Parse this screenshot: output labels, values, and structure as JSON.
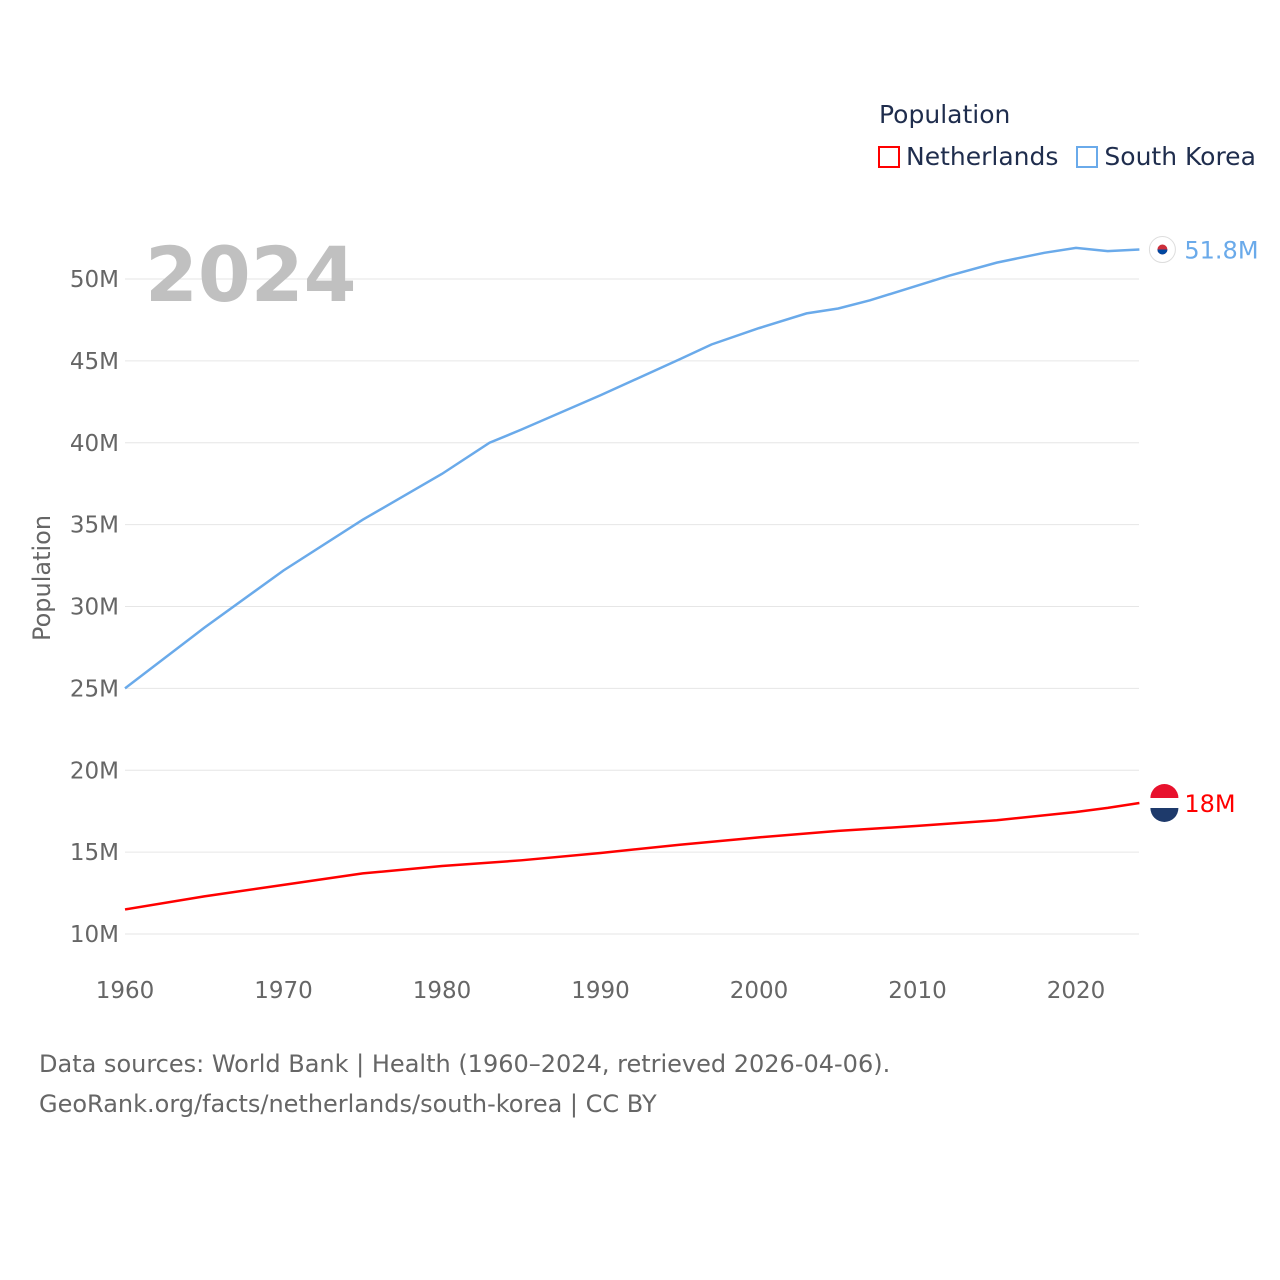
{
  "chart_data": {
    "type": "line",
    "title": "2024",
    "xlabel": "",
    "ylabel": "Population",
    "xlim": [
      1960,
      2024
    ],
    "ylim": [
      8,
      54
    ],
    "x_ticks": [
      "1960",
      "1970",
      "1980",
      "1990",
      "2000",
      "2010",
      "2020"
    ],
    "y_ticks": [
      "10M",
      "15M",
      "20M",
      "25M",
      "30M",
      "35M",
      "40M",
      "45M",
      "50M"
    ],
    "legend": {
      "title": "Population",
      "position": "top-right"
    },
    "grid": true,
    "series": [
      {
        "name": "Netherlands",
        "color": "#ff0000",
        "end_label": "18M",
        "x": [
          1960,
          1965,
          1970,
          1975,
          1980,
          1985,
          1990,
          1995,
          2000,
          2005,
          2010,
          2015,
          2020,
          2022,
          2024
        ],
        "y": [
          11.5,
          12.3,
          13.0,
          13.7,
          14.15,
          14.5,
          14.95,
          15.45,
          15.9,
          16.3,
          16.6,
          16.95,
          17.45,
          17.7,
          18.0
        ]
      },
      {
        "name": "South Korea",
        "color": "#6aaaea",
        "end_label": "51.8M",
        "x": [
          1960,
          1965,
          1970,
          1975,
          1980,
          1983,
          1985,
          1990,
          1995,
          1997,
          2000,
          2003,
          2005,
          2007,
          2010,
          2012,
          2015,
          2018,
          2020,
          2022,
          2024
        ],
        "y": [
          25.0,
          28.7,
          32.2,
          35.3,
          38.1,
          40.0,
          40.8,
          42.9,
          45.1,
          46.0,
          47.0,
          47.9,
          48.2,
          48.7,
          49.6,
          50.2,
          51.0,
          51.6,
          51.9,
          51.7,
          51.8
        ]
      }
    ]
  },
  "footer": {
    "line1": "Data sources: World Bank | Health (1960–2024, retrieved 2026-04-06).",
    "line2": "GeoRank.org/facts/netherlands/south-korea | CC BY"
  }
}
